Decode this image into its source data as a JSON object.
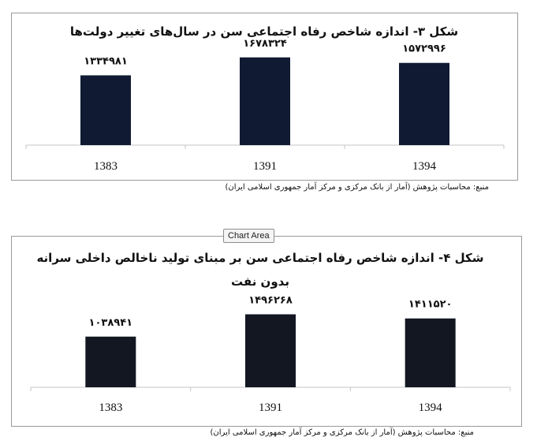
{
  "chart_area_label": "Chart Area",
  "charts": [
    {
      "source": "منبع: محاسبات پژوهش (آمار از بانک مرکزی و مرکز آمار جمهوری اسلامی ایران)"
    },
    {
      "source": "منبع: محاسبات پژوهش (آمار از بانک مرکزی و مرکز آمار جمهوری اسلامی ایران)"
    }
  ],
  "chart_data": [
    {
      "type": "bar",
      "title": "شکل ۳- اندازه شاخص رفاه اجتماعی سن در سال‌های تغییر دولت‌ها",
      "categories": [
        "1383",
        "1391",
        "1394"
      ],
      "values": [
        1334981,
        1678324,
        1572996
      ],
      "value_labels": [
        "۱۳۳۴۹۸۱",
        "۱۶۷۸۳۲۴",
        "۱۵۷۲۹۹۶"
      ],
      "bar_color": "#101b33",
      "grid": false,
      "ylim": [
        0,
        1750000
      ]
    },
    {
      "type": "bar",
      "title": "شکل ۴- اندازه شاخص رفاه اجتماعی سن بر مبنای تولید ناخالص داخلی سرانه بدون نفت",
      "title_lines": [
        "شکل ۴- اندازه شاخص رفاه اجتماعی سن بر مبنای تولید ناخالص داخلی سرانه",
        "بدون نفت"
      ],
      "categories": [
        "1383",
        "1391",
        "1394"
      ],
      "values": [
        1038941,
        1496268,
        1411520
      ],
      "value_labels": [
        "۱۰۳۸۹۴۱",
        "۱۴۹۶۲۶۸",
        "۱۴۱۱۵۲۰"
      ],
      "bar_color": "#131722",
      "grid": false,
      "ylim": [
        0,
        1650000
      ]
    }
  ]
}
